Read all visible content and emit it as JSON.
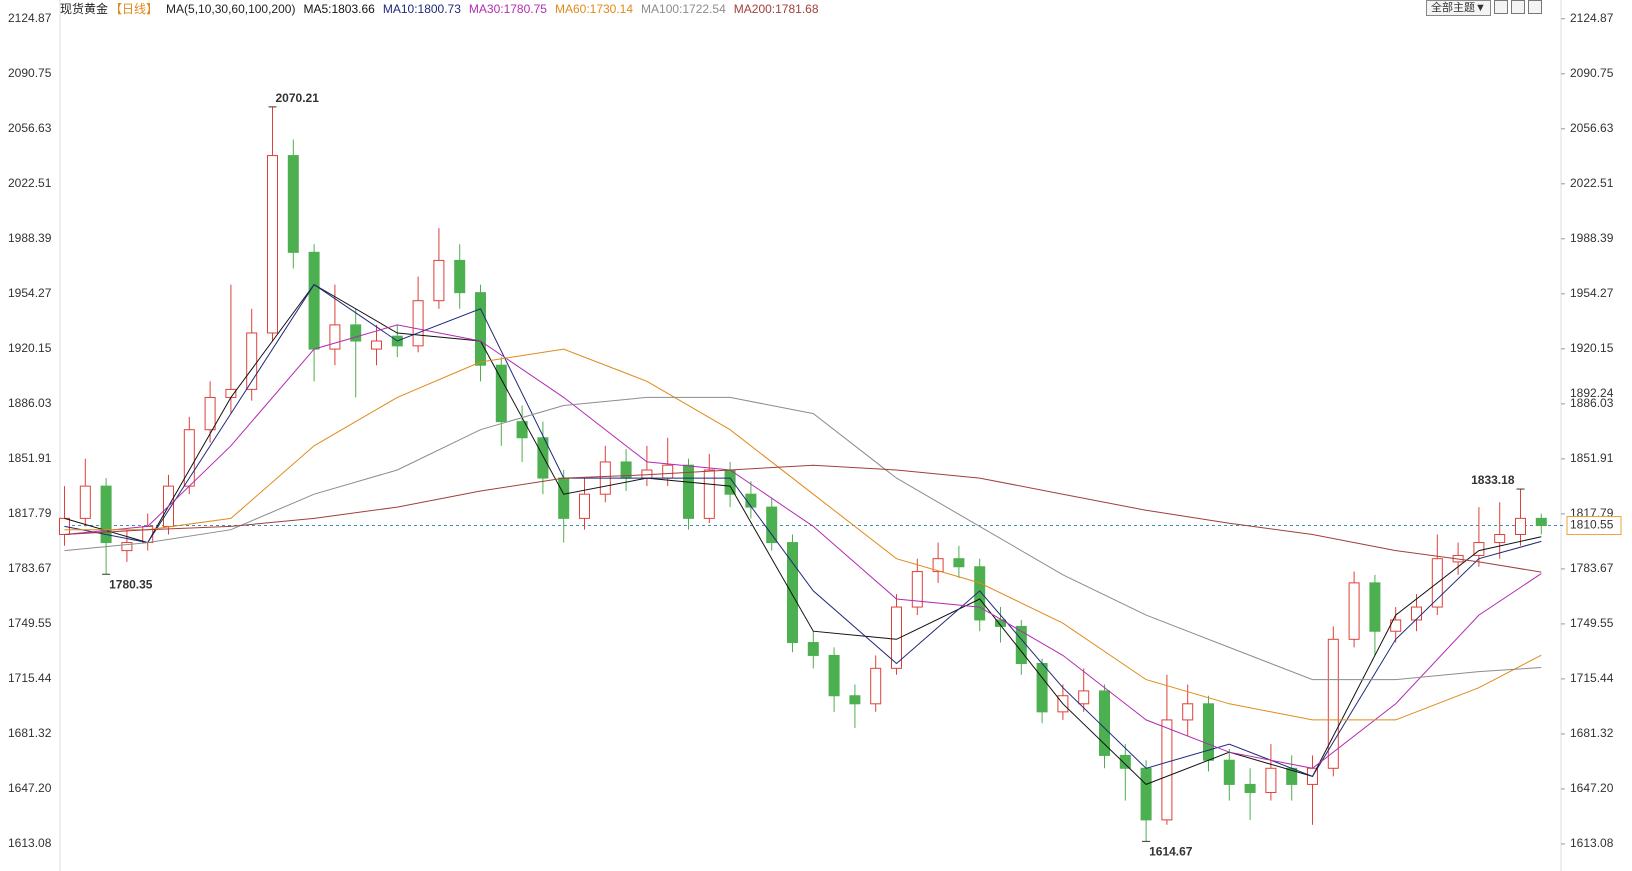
{
  "chart_data": {
    "type": "candlestick",
    "title": "现货黄金",
    "period": "【日线】",
    "ma_params": "MA(5,10,30,60,100,200)",
    "button": "全部主题▼",
    "ylim": [
      1596.3,
      2136.5
    ],
    "yticks": [
      2124.87,
      2090.75,
      2056.63,
      2022.51,
      1988.39,
      1954.27,
      1920.15,
      1886.03,
      1851.91,
      1817.79,
      1783.67,
      1749.55,
      1715.44,
      1681.32,
      {
        "value": 1647.2,
        "label": "1647.20"
      },
      1613.08
    ],
    "up_color": "#e0403a",
    "down_color": "#4caf50",
    "open": [
      1805,
      1815,
      1835,
      1795,
      1800,
      1810,
      1835,
      1870,
      1890,
      1895,
      1930,
      2040,
      1980,
      1920,
      1935,
      1920,
      1928,
      1922,
      1950,
      1975,
      1955,
      1910,
      1875,
      1865,
      1840,
      1815,
      1830,
      1850,
      1840,
      1840,
      1848,
      1815,
      1845,
      1830,
      1822,
      1800,
      1738,
      1730,
      1705,
      1700,
      1722,
      1760,
      1782,
      1790,
      1785,
      1752,
      1748,
      1725,
      1695,
      1700,
      1708,
      1668,
      1660,
      1628,
      1690,
      1700,
      1665,
      1650,
      1645,
      1660,
      1650,
      1660,
      1740,
      1775,
      1745,
      1752,
      1760,
      1788,
      1792,
      1800,
      1805,
      1815
    ],
    "high": [
      1835,
      1852,
      1840,
      1808,
      1818,
      1842,
      1878,
      1900,
      1960,
      1945,
      2070.21,
      2050,
      1985,
      1960,
      1945,
      1935,
      1935,
      1965,
      1995,
      1985,
      1960,
      1915,
      1885,
      1875,
      1845,
      1840,
      1860,
      1858,
      1860,
      1865,
      1852,
      1855,
      1850,
      1838,
      1828,
      1805,
      1745,
      1735,
      1712,
      1730,
      1768,
      1790,
      1800,
      1798,
      1790,
      1760,
      1752,
      1728,
      1712,
      1722,
      1712,
      1675,
      1665,
      1718,
      1712,
      1705,
      1672,
      1660,
      1675,
      1668,
      1668,
      1748,
      1782,
      1780,
      1760,
      1768,
      1805,
      1800,
      1822,
      1825,
      1833.18,
      1818
    ],
    "low": [
      1798,
      1810,
      1780.35,
      1788,
      1795,
      1805,
      1830,
      1862,
      1880,
      1888,
      1925,
      1970,
      1900,
      1910,
      1890,
      1910,
      1915,
      1918,
      1945,
      1945,
      1900,
      1860,
      1850,
      1830,
      1800,
      1808,
      1825,
      1832,
      1835,
      1835,
      1808,
      1812,
      1822,
      1815,
      1795,
      1732,
      1722,
      1695,
      1685,
      1695,
      1718,
      1755,
      1775,
      1778,
      1745,
      1738,
      1718,
      1688,
      1690,
      1695,
      1660,
      1640,
      1614.67,
      1625,
      1680,
      1658,
      1640,
      1628,
      1640,
      1640,
      1625,
      1655,
      1735,
      1730,
      1738,
      1745,
      1755,
      1780,
      1785,
      1790,
      1798,
      1805
    ],
    "close": [
      1815,
      1835,
      1800,
      1800,
      1810,
      1835,
      1870,
      1890,
      1895,
      1930,
      2040,
      1980,
      1920,
      1935,
      1925,
      1925,
      1922,
      1950,
      1975,
      1955,
      1910,
      1875,
      1865,
      1840,
      1815,
      1830,
      1850,
      1840,
      1845,
      1848,
      1815,
      1845,
      1830,
      1822,
      1800,
      1738,
      1730,
      1705,
      1700,
      1722,
      1760,
      1782,
      1790,
      1785,
      1752,
      1748,
      1725,
      1695,
      1705,
      1708,
      1668,
      1660,
      1628,
      1690,
      1700,
      1665,
      1650,
      1645,
      1660,
      1650,
      1660,
      1740,
      1775,
      1745,
      1752,
      1760,
      1790,
      1792,
      1800,
      1805,
      1815,
      1810.55
    ],
    "high_labels": [
      10,
      70
    ],
    "low_labels": [
      2,
      52
    ],
    "current_price": 1810.55,
    "current_color": "#e8a33a",
    "marker_price": 1892.24,
    "ma_x": [
      0,
      4,
      8,
      12,
      16,
      20,
      24,
      28,
      32,
      36,
      40,
      44,
      48,
      52,
      56,
      60,
      64,
      68,
      71
    ],
    "ma_series": [
      {
        "name": "MA5:1803.66",
        "color": "#111111",
        "values": [
          1815,
          1800,
          1890,
          1960,
          1930,
          1925,
          1830,
          1840,
          1835,
          1745,
          1740,
          1765,
          1700,
          1650,
          1670,
          1655,
          1755,
          1795,
          1803.66
        ]
      },
      {
        "name": "MA10:1800.73",
        "color": "#1f2a7a",
        "values": [
          1810,
          1800,
          1880,
          1960,
          1925,
          1945,
          1840,
          1840,
          1840,
          1770,
          1725,
          1770,
          1710,
          1660,
          1675,
          1655,
          1740,
          1790,
          1800.73
        ]
      },
      {
        "name": "MA30:1780.75",
        "color": "#b32bb3",
        "values": [
          1805,
          1810,
          1860,
          1920,
          1935,
          1925,
          1890,
          1850,
          1845,
          1810,
          1765,
          1760,
          1730,
          1690,
          1670,
          1660,
          1700,
          1755,
          1780.75
        ]
      },
      {
        "name": "MA60:1730.14",
        "color": "#e08a1a",
        "values": [
          1808,
          1808,
          1815,
          1860,
          1890,
          1912,
          1920,
          1900,
          1870,
          1830,
          1790,
          1775,
          1750,
          1715,
          1700,
          1690,
          1690,
          1710,
          1730.14
        ]
      },
      {
        "name": "MA100:1722.54",
        "color": "#8c8c8c",
        "values": [
          1795,
          1800,
          1808,
          1830,
          1845,
          1870,
          1885,
          1890,
          1890,
          1880,
          1840,
          1810,
          1780,
          1755,
          1735,
          1715,
          1715,
          1720,
          1722.54
        ]
      },
      {
        "name": "MA200:1781.68",
        "color": "#a0403a",
        "values": [
          1805,
          1808,
          1810,
          1815,
          1822,
          1832,
          1840,
          1842,
          1845,
          1848,
          1845,
          1840,
          1830,
          1820,
          1812,
          1805,
          1795,
          1788,
          1781.68
        ]
      }
    ]
  }
}
